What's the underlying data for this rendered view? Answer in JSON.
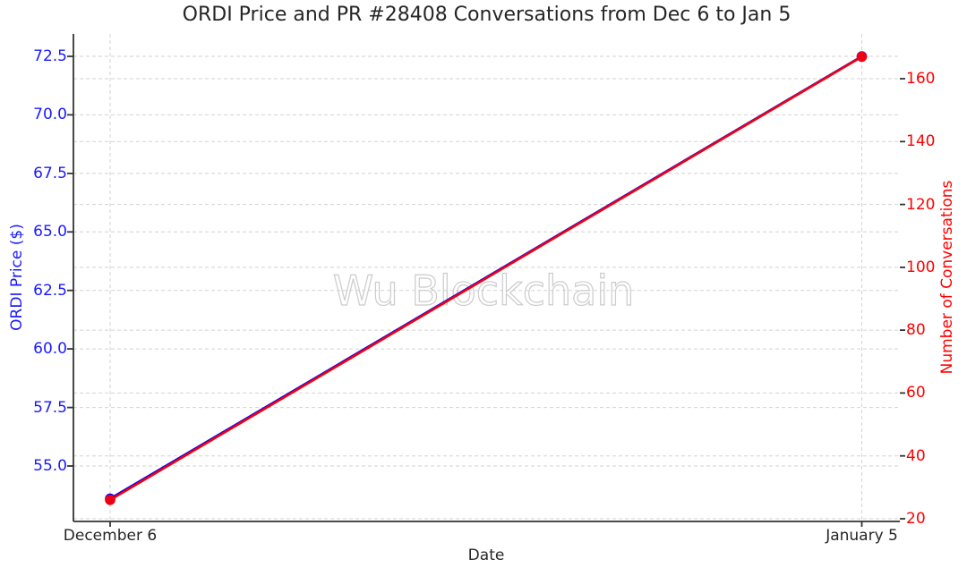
{
  "chart_data": {
    "type": "line",
    "title": "ORDI Price and PR #28408 Conversations from Dec 6 to Jan 5",
    "xlabel": "Date",
    "watermark": "Wu Blockchain",
    "watermark_color": "#cccccc",
    "text_color": "#262626",
    "grid_color": "#d2d2d2",
    "spine_color": "#333333",
    "grid": true,
    "legend": "none",
    "x_categories": [
      "December 6",
      "January 5"
    ],
    "left_axis": {
      "label": "ORDI Price ($)",
      "color": "#1a1aff",
      "ticks": [
        55.0,
        57.5,
        60.0,
        62.5,
        65.0,
        67.5,
        70.0,
        72.5
      ],
      "tick_labels": [
        "55.0",
        "57.5",
        "60.0",
        "62.5",
        "65.0",
        "67.5",
        "70.0",
        "72.5"
      ],
      "range": [
        52.6,
        73.5
      ]
    },
    "right_axis": {
      "label": "Number of Conversations",
      "color": "#ff0000",
      "ticks": [
        20,
        40,
        60,
        80,
        100,
        120,
        140,
        160
      ],
      "tick_labels": [
        "20",
        "40",
        "60",
        "80",
        "100",
        "120",
        "140",
        "160"
      ],
      "range": [
        19.1,
        174.2
      ]
    },
    "series": [
      {
        "name": "ORDI Price ($)",
        "axis": "left",
        "color": "#0000ff",
        "marker": "circle",
        "x": [
          "December 6",
          "January 5"
        ],
        "values": [
          53.6,
          72.5
        ],
        "note": "hidden exactly beneath the red line"
      },
      {
        "name": "Number of Conversations",
        "axis": "right",
        "color": "#ee0011",
        "marker": "circle",
        "x": [
          "December 6",
          "January 5"
        ],
        "values": [
          26,
          167
        ]
      }
    ]
  }
}
